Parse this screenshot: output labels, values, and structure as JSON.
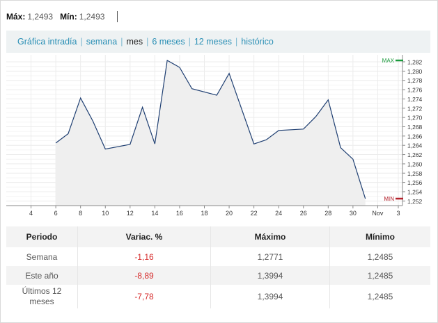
{
  "header": {
    "max_label": "Máx:",
    "max_value": "1,2493",
    "min_label": "Mín:",
    "min_value": "1,2493"
  },
  "range_tabs": [
    {
      "label": "Gráfica intradía",
      "active": false
    },
    {
      "label": "semana",
      "active": false
    },
    {
      "label": "mes",
      "active": true
    },
    {
      "label": "6 meses",
      "active": false
    },
    {
      "label": "12 meses",
      "active": false
    },
    {
      "label": "histórico",
      "active": false
    }
  ],
  "colors": {
    "max_marker": "#1a9a3c",
    "min_marker": "#b4202a",
    "line": "#1f3f72",
    "area": "#efefef",
    "tab_link": "#2a8fb5",
    "negative": "#d62a2a"
  },
  "chart_data": {
    "type": "area",
    "x_ticks": [
      "4",
      "6",
      "8",
      "10",
      "12",
      "14",
      "16",
      "18",
      "20",
      "22",
      "24",
      "26",
      "28",
      "30",
      "Nov",
      "3"
    ],
    "y_ticks": [
      "1,282",
      "1,280",
      "1,278",
      "1,276",
      "1,274",
      "1,272",
      "1,270",
      "1,268",
      "1,266",
      "1,264",
      "1,262",
      "1,260",
      "1,258",
      "1,256",
      "1,254",
      "1,252"
    ],
    "ylim": [
      1.251,
      1.2835
    ],
    "x": [
      6,
      7,
      8,
      9,
      10,
      12,
      13,
      14,
      15,
      16,
      17,
      19,
      20,
      22,
      23,
      24,
      26,
      27,
      28,
      29,
      30,
      31
    ],
    "values": [
      1.2645,
      1.2665,
      1.2742,
      1.2692,
      1.2632,
      1.2642,
      1.2722,
      1.2643,
      1.2823,
      1.2808,
      1.2762,
      1.2748,
      1.2795,
      1.2643,
      1.2652,
      1.2672,
      1.2675,
      1.2702,
      1.2738,
      1.2635,
      1.261,
      1.2525
    ],
    "max_label": "MAX",
    "min_label": "MIN",
    "max_value": 1.2823,
    "min_value": 1.2525,
    "grid": true
  },
  "table": {
    "headers": [
      "Periodo",
      "Variac. %",
      "Máximo",
      "Mínimo"
    ],
    "rows": [
      {
        "period": "Semana",
        "change": "-1,16",
        "max": "1,2771",
        "min": "1,2485"
      },
      {
        "period": "Este año",
        "change": "-8,89",
        "max": "1,3994",
        "min": "1,2485"
      },
      {
        "period": "Últimos 12 meses",
        "change": "-7,78",
        "max": "1,3994",
        "min": "1,2485"
      }
    ]
  }
}
